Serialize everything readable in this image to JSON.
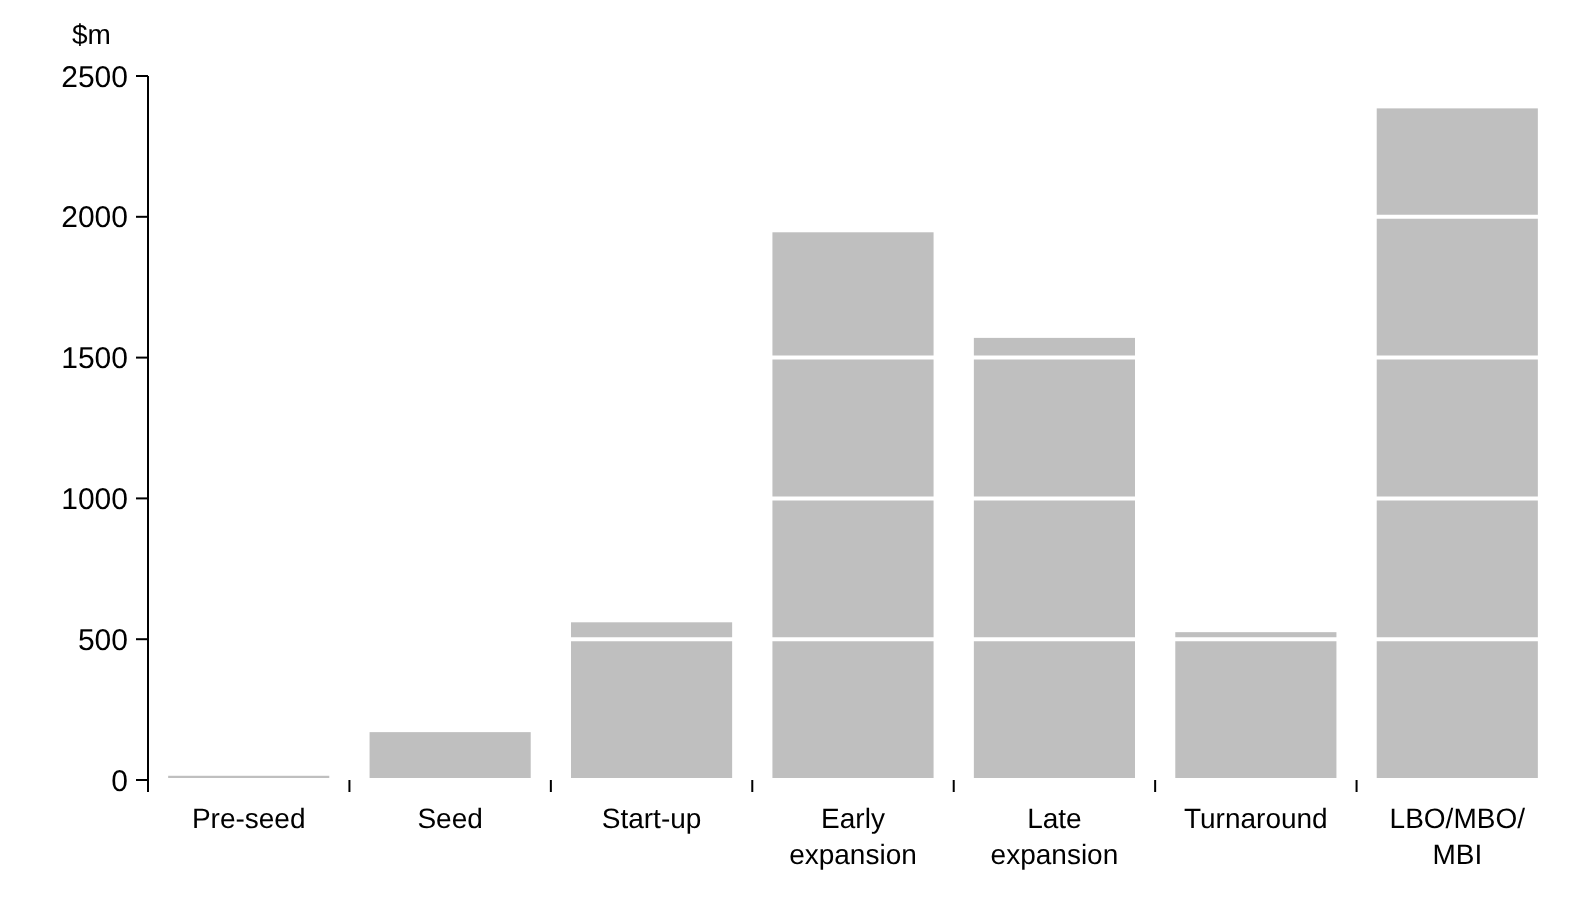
{
  "chart_data": {
    "type": "bar",
    "ylabel": "$m",
    "categories": [
      "Pre-seed",
      "Seed",
      "Start-up",
      "Early expansion",
      "Late expansion",
      "Turnaround",
      "LBO/MBO/MBI"
    ],
    "values": [
      15,
      170,
      560,
      1945,
      1570,
      525,
      2385
    ],
    "color": "#bfbfbf",
    "ylim": [
      0,
      2500
    ],
    "yticks": [
      0,
      500,
      1000,
      1500,
      2000,
      2500
    ],
    "grid": "y"
  }
}
